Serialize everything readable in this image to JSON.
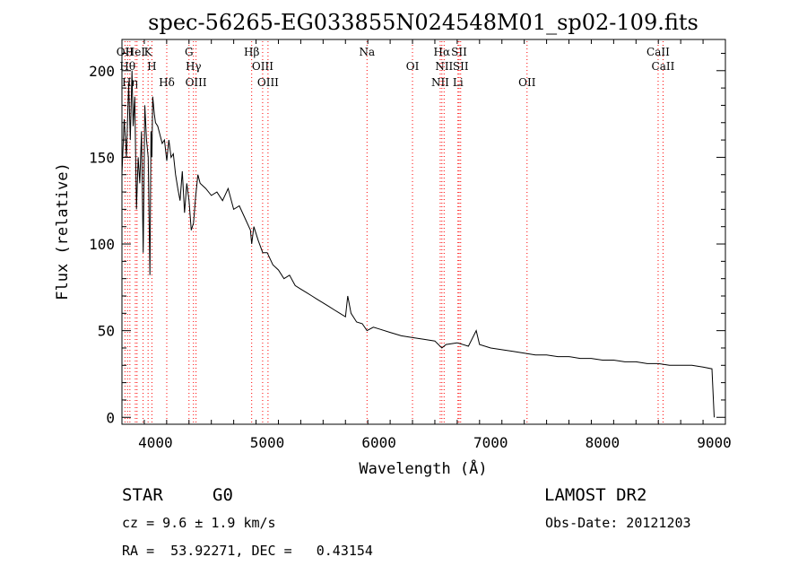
{
  "chart_data": {
    "type": "line",
    "title": "spec-56265-EG033855N024548M01_sp02-109.fits",
    "xlabel": "Wavelength (Å)",
    "ylabel": "Flux (relative)",
    "xlim": [
      3700,
      9100
    ],
    "ylim": [
      -4,
      218
    ],
    "xticks": [
      4000,
      5000,
      6000,
      7000,
      8000,
      9000
    ],
    "yticks": [
      0,
      50,
      100,
      150,
      200
    ],
    "line_color": "#000000",
    "marker_color": "#ff0000",
    "grid": false,
    "series": [
      {
        "x": [
          3700,
          3720,
          3740,
          3760,
          3775,
          3790,
          3800,
          3815,
          3830,
          3845,
          3860,
          3875,
          3890,
          3905,
          3920,
          3935,
          3950,
          3960,
          3968,
          3975,
          3990,
          4000,
          4020,
          4040,
          4060,
          4080,
          4101,
          4120,
          4140,
          4160,
          4180,
          4200,
          4220,
          4240,
          4260,
          4280,
          4300,
          4320,
          4340,
          4360,
          4380,
          4400,
          4450,
          4500,
          4550,
          4600,
          4650,
          4700,
          4750,
          4800,
          4850,
          4861,
          4880,
          4920,
          4960,
          5000,
          5050,
          5100,
          5150,
          5200,
          5250,
          5300,
          5350,
          5400,
          5450,
          5500,
          5550,
          5600,
          5650,
          5700,
          5720,
          5750,
          5800,
          5850,
          5893,
          5950,
          6000,
          6100,
          6200,
          6300,
          6400,
          6500,
          6563,
          6600,
          6700,
          6800,
          6870,
          6900,
          7000,
          7100,
          7200,
          7300,
          7400,
          7500,
          7600,
          7700,
          7800,
          7900,
          8000,
          8100,
          8200,
          8300,
          8400,
          8500,
          8600,
          8700,
          8800,
          8900,
          8980,
          9000
        ],
        "y": [
          140,
          172,
          150,
          193,
          160,
          200,
          168,
          185,
          120,
          150,
          135,
          165,
          95,
          180,
          160,
          150,
          82,
          165,
          150,
          185,
          175,
          170,
          168,
          163,
          158,
          160,
          148,
          160,
          150,
          152,
          140,
          132,
          125,
          142,
          118,
          135,
          125,
          108,
          112,
          128,
          140,
          135,
          132,
          128,
          130,
          125,
          132,
          120,
          122,
          115,
          108,
          100,
          110,
          102,
          95,
          95,
          88,
          85,
          80,
          82,
          76,
          74,
          72,
          70,
          68,
          66,
          64,
          62,
          60,
          58,
          70,
          60,
          55,
          54,
          50,
          52,
          51,
          49,
          47,
          46,
          45,
          44,
          40,
          42,
          43,
          41,
          50,
          42,
          40,
          39,
          38,
          37,
          36,
          36,
          35,
          35,
          34,
          34,
          33,
          33,
          32,
          32,
          31,
          31,
          30,
          30,
          30,
          29,
          28,
          0
        ]
      }
    ],
    "lines": [
      {
        "wavelength": 3727,
        "label": "OII"
      },
      {
        "wavelength": 3750,
        "label": "Hθ"
      },
      {
        "wavelength": 3771,
        "label": "Hη"
      },
      {
        "wavelength": 3820,
        "label": "HeI"
      },
      {
        "wavelength": 3835,
        "label": ""
      },
      {
        "wavelength": 3889,
        "label": ""
      },
      {
        "wavelength": 3934,
        "label": "K"
      },
      {
        "wavelength": 3968,
        "label": "H"
      },
      {
        "wavelength": 4101,
        "label": "Hδ"
      },
      {
        "wavelength": 4300,
        "label": "G"
      },
      {
        "wavelength": 4340,
        "label": "Hγ"
      },
      {
        "wavelength": 4363,
        "label": "OIII"
      },
      {
        "wavelength": 4861,
        "label": "Hβ"
      },
      {
        "wavelength": 4959,
        "label": "OIII"
      },
      {
        "wavelength": 5007,
        "label": "OIII"
      },
      {
        "wavelength": 5893,
        "label": "Na"
      },
      {
        "wavelength": 6300,
        "label": "OI"
      },
      {
        "wavelength": 6548,
        "label": "NII"
      },
      {
        "wavelength": 6563,
        "label": "Hα"
      },
      {
        "wavelength": 6583,
        "label": "NII"
      },
      {
        "wavelength": 6707,
        "label": "Li"
      },
      {
        "wavelength": 6717,
        "label": "SII"
      },
      {
        "wavelength": 6731,
        "label": "SII"
      },
      {
        "wavelength": 7325,
        "label": "OII"
      },
      {
        "wavelength": 8498,
        "label": "CaII"
      },
      {
        "wavelength": 8542,
        "label": "CaII"
      }
    ]
  },
  "info": {
    "class_label": "STAR",
    "subclass_label": "G0",
    "survey": "LAMOST DR2",
    "cz": "cz = 9.6 ± 1.9 km/s",
    "obs_date": "Obs-Date: 20121203",
    "coords": "RA =  53.92271, DEC =   0.43154"
  }
}
